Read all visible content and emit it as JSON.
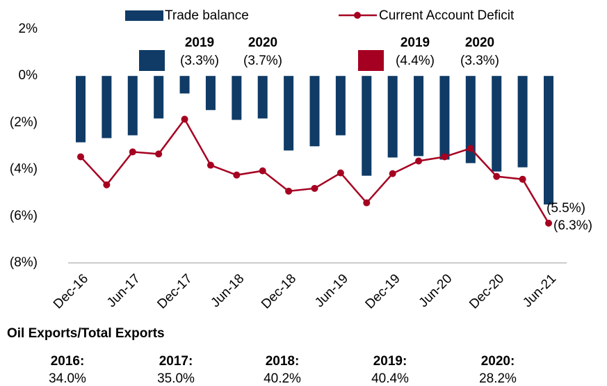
{
  "chart_data": {
    "type": "bar_line",
    "categories": [
      "Dec-16",
      null,
      "Jun-17",
      null,
      "Dec-17",
      null,
      "Jun-18",
      null,
      "Dec-18",
      null,
      "Jun-19",
      null,
      "Dec-19",
      null,
      "Jun-20",
      null,
      "Dec-20",
      null,
      "Jun-21"
    ],
    "series": [
      {
        "name": "Trade balance",
        "type": "bar",
        "color": "#0f3b66",
        "values": [
          -2.84,
          -2.66,
          -2.54,
          -1.82,
          -0.75,
          -1.46,
          -1.88,
          -1.82,
          -3.19,
          -3.01,
          -2.54,
          -4.27,
          -3.49,
          -3.43,
          -3.58,
          -3.73,
          -4.09,
          -3.91,
          -5.5
        ],
        "value_labels": [
          null,
          null,
          null,
          null,
          null,
          null,
          null,
          null,
          null,
          null,
          null,
          null,
          null,
          null,
          null,
          null,
          null,
          null,
          "(5.5%)"
        ]
      },
      {
        "name": "Current Account Deficit",
        "type": "line",
        "color": "#a50021",
        "values": [
          -3.46,
          -4.66,
          -3.25,
          -3.34,
          -1.85,
          -3.82,
          -4.24,
          -4.06,
          -4.93,
          -4.81,
          -4.15,
          -5.43,
          -4.18,
          -3.64,
          -3.46,
          -3.1,
          -4.3,
          -4.42,
          -6.3
        ],
        "value_labels": [
          null,
          null,
          null,
          null,
          null,
          null,
          null,
          null,
          null,
          null,
          null,
          null,
          null,
          null,
          null,
          null,
          null,
          null,
          "(6.3%)"
        ]
      }
    ],
    "ylim": [
      -8,
      2
    ],
    "yticks": [
      {
        "value": 2,
        "label": "2%"
      },
      {
        "value": 0,
        "label": "0%"
      },
      {
        "value": -2,
        "label": "(2%)"
      },
      {
        "value": -4,
        "label": "(4%)"
      },
      {
        "value": -6,
        "label": "(6%)"
      },
      {
        "value": -8,
        "label": "(8%)"
      }
    ],
    "legend": "top",
    "annotations": [
      {
        "series": 0,
        "items": [
          {
            "year": "2019",
            "label": "(3.3%)"
          },
          {
            "year": "2020",
            "label": "(3.7%)"
          }
        ]
      },
      {
        "series": 1,
        "items": [
          {
            "year": "2019",
            "label": "(4.4%)"
          },
          {
            "year": "2020",
            "label": "(3.3%)"
          }
        ]
      }
    ]
  },
  "footer": {
    "title": "Oil Exports/Total Exports",
    "items": [
      {
        "year": "2016:",
        "value": "34.0%"
      },
      {
        "year": "2017:",
        "value": "35.0%"
      },
      {
        "year": "2018:",
        "value": "40.2%"
      },
      {
        "year": "2019:",
        "value": "40.4%"
      },
      {
        "year": "2020:",
        "value": "28.2%"
      }
    ]
  }
}
